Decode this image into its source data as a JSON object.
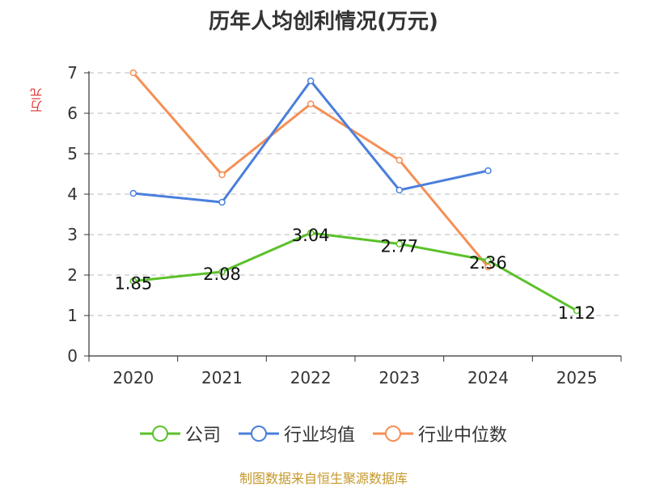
{
  "chart_data": {
    "type": "line",
    "title": "历年人均创利情况(万元)",
    "ylabel": "万元",
    "xlabel": "",
    "categories": [
      "2020",
      "2021",
      "2022",
      "2023",
      "2024",
      "2025"
    ],
    "ylim": [
      0,
      7
    ],
    "yticks": [
      "0",
      "1",
      "2",
      "3",
      "4",
      "5",
      "6",
      "7"
    ],
    "grid": true,
    "legend_position": "bottom",
    "series": [
      {
        "name": "公司",
        "color": "#5cc12b",
        "values": [
          1.85,
          2.08,
          3.04,
          2.77,
          2.36,
          1.12
        ],
        "labels": [
          "1.85",
          "2.08",
          "3.04",
          "2.77",
          "2.36",
          "1.12"
        ]
      },
      {
        "name": "行业均值",
        "color": "#4a7fdc",
        "values": [
          4.02,
          3.8,
          6.8,
          4.1,
          4.58,
          null
        ]
      },
      {
        "name": "行业中位数",
        "color": "#f58f56",
        "values": [
          7.0,
          4.48,
          6.23,
          4.84,
          2.2,
          null
        ]
      }
    ]
  },
  "source": "制图数据来自恒生聚源数据库"
}
